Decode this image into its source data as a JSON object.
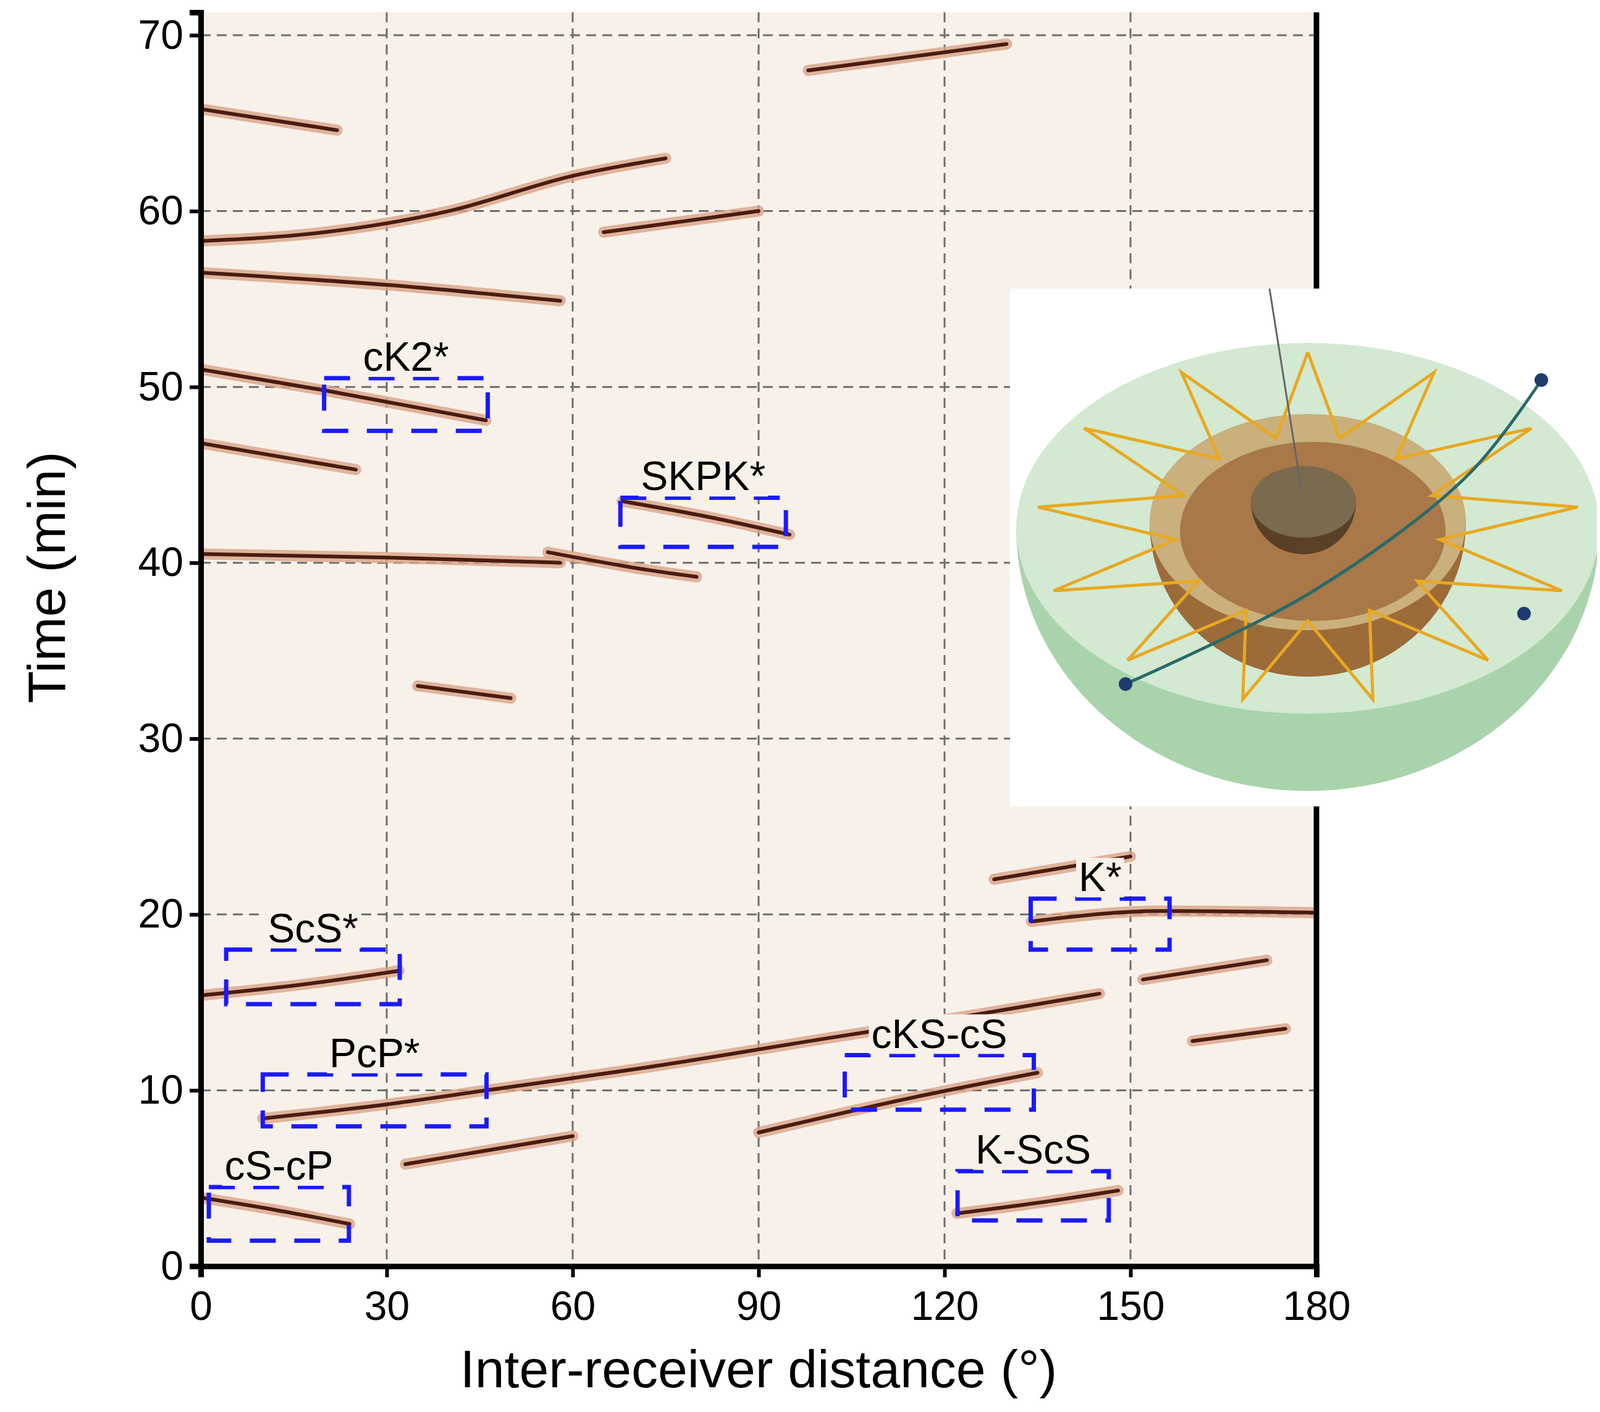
{
  "chart_data": {
    "type": "line",
    "x_label": "Inter-receiver distance (°)",
    "y_label": "Time (min)",
    "xlim": [
      0,
      180
    ],
    "ylim": [
      0,
      71.3
    ],
    "xticks": [
      0,
      30,
      60,
      90,
      120,
      150,
      180
    ],
    "yticks": [
      0,
      10,
      20,
      30,
      40,
      50,
      60,
      70
    ],
    "grid": true,
    "color": "#4a1c10",
    "series": [
      {
        "x": [
          0,
          12,
          24
        ],
        "values": [
          3.9,
          3.2,
          2.4
        ]
      },
      {
        "x": [
          10,
          30,
          46,
          70,
          100,
          125,
          145
        ],
        "values": [
          8.4,
          9.2,
          10.0,
          11.2,
          12.9,
          14.3,
          15.5
        ]
      },
      {
        "x": [
          33,
          60
        ],
        "values": [
          5.8,
          7.4
        ]
      },
      {
        "x": [
          0,
          16,
          32
        ],
        "values": [
          15.4,
          16.0,
          16.8
        ]
      },
      {
        "x": [
          90,
          115,
          135
        ],
        "values": [
          7.6,
          9.6,
          11.0
        ]
      },
      {
        "x": [
          122,
          135,
          148
        ],
        "values": [
          3.0,
          3.6,
          4.3
        ]
      },
      {
        "x": [
          134,
          155,
          180
        ],
        "values": [
          19.6,
          20.2,
          20.1
        ]
      },
      {
        "x": [
          128,
          150
        ],
        "values": [
          22.0,
          23.3
        ]
      },
      {
        "x": [
          152,
          172
        ],
        "values": [
          16.3,
          17.4
        ]
      },
      {
        "x": [
          160,
          175
        ],
        "values": [
          12.8,
          13.5
        ]
      },
      {
        "x": [
          0,
          30,
          58
        ],
        "values": [
          40.5,
          40.3,
          40.0
        ]
      },
      {
        "x": [
          56,
          72,
          80
        ],
        "values": [
          40.6,
          39.6,
          39.2
        ]
      },
      {
        "x": [
          68,
          82,
          95
        ],
        "values": [
          43.5,
          42.6,
          41.6
        ]
      },
      {
        "x": [
          0,
          20,
          46
        ],
        "values": [
          51.0,
          49.8,
          48.1
        ]
      },
      {
        "x": [
          0,
          25
        ],
        "values": [
          46.8,
          45.3
        ]
      },
      {
        "x": [
          0,
          20,
          40,
          60,
          75
        ],
        "values": [
          58.3,
          58.8,
          60.0,
          62.0,
          63.0
        ]
      },
      {
        "x": [
          65,
          90
        ],
        "values": [
          58.8,
          60.0
        ]
      },
      {
        "x": [
          0,
          30,
          58
        ],
        "values": [
          56.5,
          55.8,
          54.9
        ]
      },
      {
        "x": [
          0,
          22
        ],
        "values": [
          65.8,
          64.6
        ]
      },
      {
        "x": [
          98,
          130
        ],
        "values": [
          68.0,
          69.5
        ]
      },
      {
        "x": [
          35,
          50
        ],
        "values": [
          33.0,
          32.3
        ]
      }
    ],
    "annotations": [
      {
        "text": "cK2*",
        "x": [
          19.9,
          46.3
        ],
        "y": [
          47.5,
          50.5
        ]
      },
      {
        "text": "SKPK*",
        "x": [
          67.7,
          94.4
        ],
        "y": [
          40.9,
          43.7
        ]
      },
      {
        "text": "K*",
        "x": [
          133.9,
          156.3
        ],
        "y": [
          18.0,
          20.9
        ]
      },
      {
        "text": "ScS*",
        "x": [
          4.1,
          32.1
        ],
        "y": [
          14.9,
          18.0
        ]
      },
      {
        "text": "PcP*",
        "x": [
          10.0,
          46.1
        ],
        "y": [
          7.95,
          10.9
        ]
      },
      {
        "text": "cKS-cS",
        "x": [
          103.9,
          134.4
        ],
        "y": [
          8.9,
          12.0
        ]
      },
      {
        "text": "K-ScS",
        "x": [
          122.1,
          146.5
        ],
        "y": [
          2.6,
          5.4
        ]
      },
      {
        "text": "cS-cP",
        "x": [
          1.3,
          23.9
        ],
        "y": [
          1.45,
          4.5
        ]
      }
    ]
  }
}
